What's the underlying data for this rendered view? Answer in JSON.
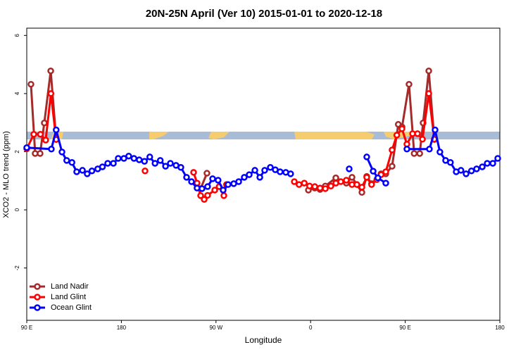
{
  "chart_data": {
    "type": "line",
    "title": "20N-25N April (Ver 10)   2015-01-01 to 2020-12-18",
    "x_label": "Longitude",
    "y_label": "XCO2 - MLO trend (ppm)",
    "xlim": [
      90,
      540
    ],
    "ylim": [
      -3.8,
      6.25
    ],
    "xticks": [
      {
        "value": 90,
        "label": "90 E"
      },
      {
        "value": 180,
        "label": "180"
      },
      {
        "value": 270,
        "label": "90 W"
      },
      {
        "value": 360,
        "label": "0"
      },
      {
        "value": 450,
        "label": "90 E"
      },
      {
        "value": 540,
        "label": "180"
      }
    ],
    "yticks": [
      -2,
      0,
      2,
      4,
      6
    ],
    "legend": "bottomleft",
    "series": [
      {
        "name": "Land Nadir",
        "color": "#a52a2a",
        "x": [
          94,
          98,
          102.7,
          106.7,
          112.8,
          118,
          null,
          255.4,
          261.4,
          null,
          357.9,
          364,
          369,
          374,
          384,
          394,
          399.4,
          408.8,
          413.4,
          418,
          427,
          431.5,
          437.5,
          443.4,
          447,
          453.6,
          458.5,
          463.8,
          467,
          472.4,
          477.7
        ],
        "values": [
          4.32,
          1.94,
          1.94,
          2.99,
          4.78,
          2.42,
          null,
          0.73,
          1.26,
          null,
          0.68,
          0.75,
          0.7,
          0.82,
          1.1,
          0.92,
          1.12,
          0.6,
          1.15,
          0.9,
          1.24,
          1.24,
          1.5,
          2.94,
          2.85,
          4.32,
          1.94,
          1.94,
          2.99,
          4.78,
          2.42
        ]
      },
      {
        "name": "Land Glint",
        "color": "#ff0000",
        "x": [
          90,
          96.7,
          103,
          108,
          113,
          118,
          null,
          202.5,
          null,
          248.7,
          252,
          255.4,
          258.8,
          262,
          268.8,
          273,
          277.5,
          280,
          null,
          344.5,
          349,
          354,
          359,
          364,
          369,
          374,
          379.3,
          384,
          388.7,
          394,
          399.4,
          404,
          408.8,
          413.4,
          418,
          423,
          427,
          431.5,
          437.5,
          442,
          446.9,
          451.6,
          457,
          461.7,
          466.4,
          472.4,
          477.7
        ],
        "values": [
          2.1,
          2.6,
          2.6,
          2.4,
          4.0,
          2.42,
          null,
          1.34,
          null,
          1.29,
          0.92,
          0.49,
          0.36,
          0.5,
          0.68,
          0.8,
          0.49,
          0.87,
          null,
          0.97,
          0.87,
          0.92,
          0.82,
          0.8,
          0.75,
          0.73,
          0.82,
          0.92,
          0.97,
          1.02,
          0.87,
          0.87,
          0.78,
          1.12,
          0.87,
          1.04,
          1.21,
          1.31,
          2.06,
          2.57,
          2.79,
          2.26,
          2.62,
          2.62,
          2.43,
          4.0,
          2.43
        ]
      },
      {
        "name": "Ocean Glint",
        "color": "#0000ff",
        "x": [
          90,
          113.4,
          118,
          123.5,
          128,
          133,
          137.5,
          143,
          147.5,
          152,
          157.5,
          162,
          167,
          172.4,
          177,
          182.4,
          187,
          192,
          197,
          202,
          207,
          212,
          217,
          222,
          226.6,
          232,
          236.6,
          242,
          246.7,
          252,
          256.7,
          262,
          266.8,
          272,
          276.8,
          281.5,
          286.9,
          291.6,
          296.9,
          301.6,
          307,
          311.7,
          316.3,
          321.7,
          326.4,
          331,
          336.4,
          341,
          null,
          396.7,
          null,
          413.4,
          419.5,
          424,
          431.5,
          null,
          451.6,
          473,
          478.4,
          483,
          488.4,
          493,
          498.5,
          503,
          507.9,
          513,
          517.9,
          523.3,
          528,
          533.3,
          538
        ],
        "values": [
          2.14,
          2.09,
          2.75,
          1.99,
          1.7,
          1.63,
          1.31,
          1.36,
          1.24,
          1.34,
          1.41,
          1.48,
          1.6,
          1.6,
          1.77,
          1.77,
          1.85,
          1.77,
          1.72,
          1.67,
          1.82,
          1.6,
          1.7,
          1.5,
          1.6,
          1.53,
          1.46,
          1.12,
          0.97,
          0.75,
          0.73,
          0.8,
          1.07,
          1.02,
          0.68,
          0.87,
          0.9,
          0.97,
          1.12,
          1.21,
          1.36,
          1.12,
          1.36,
          1.46,
          1.38,
          1.31,
          1.29,
          1.24,
          null,
          1.41,
          null,
          1.82,
          1.33,
          1.1,
          0.92,
          null,
          2.09,
          2.09,
          2.75,
          1.99,
          1.7,
          1.63,
          1.31,
          1.36,
          1.24,
          1.34,
          1.41,
          1.48,
          1.6,
          1.6,
          1.77
        ]
      }
    ]
  }
}
